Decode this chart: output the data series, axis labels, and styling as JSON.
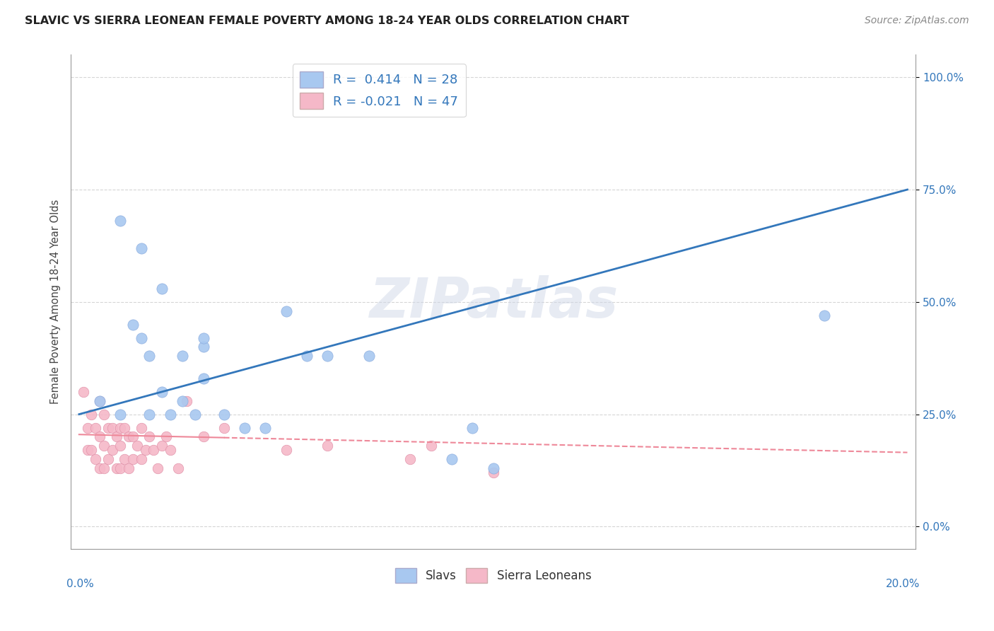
{
  "title": "SLAVIC VS SIERRA LEONEAN FEMALE POVERTY AMONG 18-24 YEAR OLDS CORRELATION CHART",
  "source_text": "Source: ZipAtlas.com",
  "ylabel": "Female Poverty Among 18-24 Year Olds",
  "xlim": [
    0.0,
    20.0
  ],
  "ylim": [
    -5.0,
    105.0
  ],
  "yticks": [
    0,
    25,
    50,
    75,
    100
  ],
  "ytick_labels": [
    "0.0%",
    "25.0%",
    "50.0%",
    "75.0%",
    "100.0%"
  ],
  "slav_R": 0.414,
  "slav_N": 28,
  "sierra_R": -0.021,
  "sierra_N": 47,
  "slav_color": "#a8c8f0",
  "sierra_color": "#f5b8c8",
  "slav_line_color": "#3377bb",
  "sierra_line_color": "#ee8899",
  "watermark": "ZIPatlas",
  "watermark_color": "#d0d8e8",
  "slav_trend_x0": 0.0,
  "slav_trend_y0": 25.0,
  "slav_trend_x1": 20.0,
  "slav_trend_y1": 75.0,
  "sierra_trend_x0": 0.0,
  "sierra_trend_y0": 20.5,
  "sierra_trend_x1": 20.0,
  "sierra_trend_y1": 16.5,
  "slav_x": [
    0.5,
    1.0,
    1.3,
    1.5,
    1.7,
    1.7,
    2.0,
    2.2,
    2.5,
    2.5,
    2.8,
    3.0,
    3.5,
    4.0,
    4.5,
    5.0,
    5.5,
    6.0,
    7.0,
    9.0,
    9.5,
    10.0,
    18.0
  ],
  "slav_y": [
    28.0,
    25.0,
    45.0,
    42.0,
    38.0,
    25.0,
    30.0,
    25.0,
    28.0,
    38.0,
    25.0,
    40.0,
    25.0,
    22.0,
    22.0,
    48.0,
    38.0,
    38.0,
    38.0,
    15.0,
    22.0,
    13.0,
    47.0
  ],
  "slav_x2": [
    1.0,
    1.5,
    2.0,
    3.0,
    3.0
  ],
  "slav_y2": [
    68.0,
    62.0,
    53.0,
    42.0,
    33.0
  ],
  "sierra_x": [
    0.1,
    0.2,
    0.2,
    0.3,
    0.3,
    0.4,
    0.4,
    0.5,
    0.5,
    0.5,
    0.6,
    0.6,
    0.6,
    0.7,
    0.7,
    0.8,
    0.8,
    0.9,
    0.9,
    1.0,
    1.0,
    1.0,
    1.1,
    1.1,
    1.2,
    1.2,
    1.3,
    1.3,
    1.4,
    1.5,
    1.5,
    1.6,
    1.7,
    1.8,
    1.9,
    2.0,
    2.1,
    2.2,
    2.4,
    2.6,
    3.0,
    3.5,
    5.0,
    6.0,
    8.0,
    8.5,
    10.0
  ],
  "sierra_y": [
    30.0,
    22.0,
    17.0,
    25.0,
    17.0,
    22.0,
    15.0,
    28.0,
    20.0,
    13.0,
    25.0,
    18.0,
    13.0,
    22.0,
    15.0,
    22.0,
    17.0,
    20.0,
    13.0,
    22.0,
    18.0,
    13.0,
    22.0,
    15.0,
    20.0,
    13.0,
    20.0,
    15.0,
    18.0,
    22.0,
    15.0,
    17.0,
    20.0,
    17.0,
    13.0,
    18.0,
    20.0,
    17.0,
    13.0,
    28.0,
    20.0,
    22.0,
    17.0,
    18.0,
    15.0,
    18.0,
    12.0
  ]
}
